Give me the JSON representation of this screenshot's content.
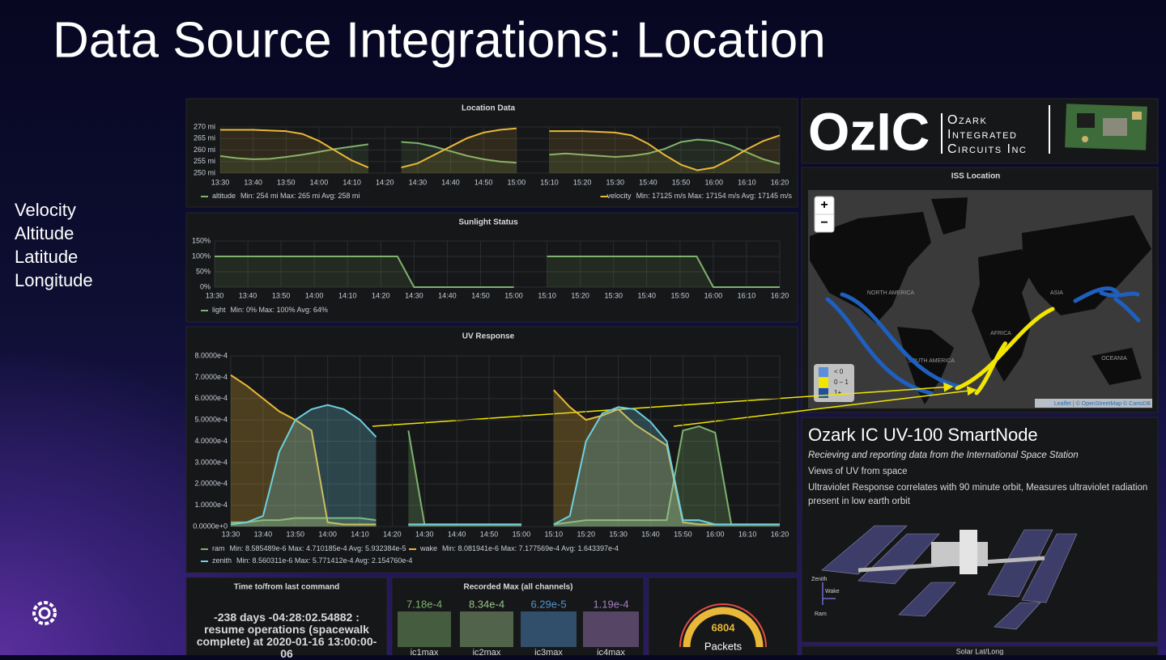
{
  "slide": {
    "title": "Data Source Integrations: Location",
    "bullets": [
      "Velocity",
      "Altitude",
      "Latitude",
      "Longitude"
    ]
  },
  "chart_data": [
    {
      "type": "line",
      "title": "Location Data",
      "categories": [
        "13:30",
        null,
        "13:40",
        null,
        "13:50",
        null,
        "14:00",
        null,
        "14:10",
        null,
        "14:20",
        null,
        "14:30",
        null,
        "14:40",
        null,
        "14:50",
        null,
        "15:00",
        null,
        "15:10",
        null,
        "15:20",
        null,
        "15:30",
        null,
        "15:40",
        null,
        "15:50",
        null,
        "16:00",
        null,
        "16:10",
        null,
        "16:20"
      ],
      "ylim": [
        250,
        270
      ],
      "yticks": [
        {
          "value": 250,
          "label": "250 mi"
        },
        {
          "value": 255,
          "label": "255 mi"
        },
        {
          "value": 260,
          "label": "260 mi"
        },
        {
          "value": 265,
          "label": "265 mi"
        },
        {
          "value": 270,
          "label": "270 mi"
        }
      ],
      "y2lim": [
        17123,
        17156
      ],
      "grid": true,
      "series": [
        {
          "name": "altitude",
          "color": "#7eb26d",
          "stats": "Min: 254 mi  Max: 265 mi  Avg: 258 mi",
          "values": [
            257.4,
            256.5,
            256,
            256.2,
            257,
            258,
            259.2,
            260.5,
            261.5,
            262.5,
            null,
            263.5,
            263,
            261.5,
            259.5,
            257.5,
            256,
            255,
            254.5,
            null,
            258,
            258.5,
            258,
            257.5,
            257,
            257.5,
            258.5,
            260.5,
            263.5,
            264.5,
            264,
            262,
            259,
            256,
            254
          ]
        },
        {
          "name": "velocity",
          "color": "#eab839",
          "axis": "y2",
          "stats": "Min: 17125 m/s  Max: 17154 m/s  Avg: 17145 m/s",
          "values": [
            17154,
            17154,
            17154,
            17153.5,
            17153,
            17151,
            17146,
            17139,
            17132,
            17127,
            null,
            17127,
            17130,
            17136,
            17142,
            17148,
            17152,
            17154,
            17155,
            null,
            17153,
            17153,
            17153,
            17152.5,
            17152,
            17150,
            17144,
            17136,
            17129,
            17125,
            17127,
            17133,
            17140,
            17146,
            17150
          ]
        }
      ]
    },
    {
      "type": "line",
      "title": "Sunlight Status",
      "categories": [
        "13:30",
        null,
        "13:40",
        null,
        "13:50",
        null,
        "14:00",
        null,
        "14:10",
        null,
        "14:20",
        null,
        "14:30",
        null,
        "14:40",
        null,
        "14:50",
        null,
        "15:00",
        null,
        "15:10",
        null,
        "15:20",
        null,
        "15:30",
        null,
        "15:40",
        null,
        "15:50",
        null,
        "16:00",
        null,
        "16:10",
        null,
        "16:20"
      ],
      "ylim": [
        0,
        150
      ],
      "yticks": [
        {
          "value": 0,
          "label": "0%"
        },
        {
          "value": 50,
          "label": "50%"
        },
        {
          "value": 100,
          "label": "100%"
        },
        {
          "value": 150,
          "label": "150%"
        }
      ],
      "grid": true,
      "series": [
        {
          "name": "light",
          "color": "#7eb26d",
          "stats": "Min: 0%  Max: 100%  Avg: 64%",
          "values": [
            100,
            100,
            100,
            100,
            100,
            100,
            100,
            100,
            100,
            100,
            100,
            100,
            0,
            0,
            0,
            0,
            0,
            0,
            0,
            null,
            100,
            100,
            100,
            100,
            100,
            100,
            100,
            100,
            100,
            100,
            0,
            0,
            0,
            0,
            0
          ]
        }
      ]
    },
    {
      "type": "line",
      "title": "UV Response",
      "categories": [
        "13:30",
        null,
        "13:40",
        null,
        "13:50",
        null,
        "14:00",
        null,
        "14:10",
        null,
        "14:20",
        null,
        "14:30",
        null,
        "14:40",
        null,
        "14:50",
        null,
        "15:00",
        null,
        "15:10",
        null,
        "15:20",
        null,
        "15:30",
        null,
        "15:40",
        null,
        "15:50",
        null,
        "16:00",
        null,
        "16:10",
        null,
        "16:20"
      ],
      "ylim": [
        0,
        0.0008
      ],
      "yticks": [
        {
          "value": 0,
          "label": "0.0000e+0"
        },
        {
          "value": 0.0001,
          "label": "1.0000e-4"
        },
        {
          "value": 0.0002,
          "label": "2.0000e-4"
        },
        {
          "value": 0.0003,
          "label": "3.0000e-4"
        },
        {
          "value": 0.0004,
          "label": "4.0000e-4"
        },
        {
          "value": 0.0005,
          "label": "5.0000e-4"
        },
        {
          "value": 0.0006,
          "label": "6.0000e-4"
        },
        {
          "value": 0.0007,
          "label": "7.0000e-4"
        },
        {
          "value": 0.0008,
          "label": "8.0000e-4"
        }
      ],
      "grid": true,
      "series": [
        {
          "name": "ram",
          "color": "#7eb26d",
          "stats": "Min: 8.585489e-6  Max: 4.710185e-4  Avg: 5.932384e-5",
          "values": [
            2e-05,
            2e-05,
            3e-05,
            3e-05,
            4e-05,
            4e-05,
            4e-05,
            4e-05,
            4e-05,
            3e-05,
            null,
            0.00045,
            1e-05,
            1e-05,
            1e-05,
            1e-05,
            1e-05,
            1e-05,
            1e-05,
            null,
            1e-05,
            2e-05,
            3e-05,
            3e-05,
            3e-05,
            3e-05,
            3e-05,
            3e-05,
            0.00045,
            0.00047,
            0.00044,
            1e-05,
            1e-05,
            1e-05,
            1e-05
          ]
        },
        {
          "name": "wake",
          "color": "#eab839",
          "stats": "Min: 8.081941e-6  Max: 7.177569e-4  Avg: 1.643397e-4",
          "values": [
            0.00071,
            0.00066,
            0.0006,
            0.00054,
            0.0005,
            0.00045,
            2e-05,
            1e-05,
            1e-05,
            1e-05,
            null,
            1e-05,
            1e-05,
            1e-05,
            1e-05,
            1e-05,
            1e-05,
            1e-05,
            1e-05,
            null,
            0.00064,
            0.00056,
            0.0005,
            0.00052,
            0.00055,
            0.00048,
            0.00043,
            0.00038,
            2e-05,
            1e-05,
            1e-05,
            1e-05,
            1e-05,
            1e-05,
            1e-05
          ]
        },
        {
          "name": "zenith",
          "color": "#6ed0e0",
          "stats": "Min: 8.560311e-6  Max: 5.771412e-4  Avg: 2.154760e-4",
          "values": [
            1e-05,
            2e-05,
            5e-05,
            0.00035,
            0.0005,
            0.00055,
            0.00057,
            0.00055,
            0.0005,
            0.00042,
            null,
            1e-05,
            1e-05,
            1e-05,
            1e-05,
            1e-05,
            1e-05,
            1e-05,
            1e-05,
            null,
            1e-05,
            5e-05,
            0.0004,
            0.00053,
            0.00056,
            0.00055,
            0.00049,
            0.0004,
            3e-05,
            3e-05,
            1e-05,
            1e-05,
            1e-05,
            1e-05,
            1e-05
          ]
        }
      ]
    }
  ],
  "panels": {
    "command": {
      "title": "Time to/from last command",
      "text": "-238 days -04:28:02.54882 : resume operations (spacewalk complete) at 2020-01-16 13:00:00-06"
    },
    "recorded_max": {
      "title": "Recorded Max (all channels)",
      "items": [
        {
          "label": "ic1max",
          "value": "7.18e-4",
          "color": "#7eb26d"
        },
        {
          "label": "ic2max",
          "value": "8.34e-4",
          "color": "#9ac48a"
        },
        {
          "label": "ic3max",
          "value": "6.29e-5",
          "color": "#5195ce"
        },
        {
          "label": "ic4max",
          "value": "1.19e-4",
          "color": "#a57fc2"
        }
      ]
    },
    "packets": {
      "value": 6804,
      "label": "Packets"
    },
    "logo": {
      "mark": "OzIC",
      "lines": [
        "Ozark",
        "Integrated",
        "Circuits Inc"
      ]
    },
    "map": {
      "title": "ISS Location",
      "zoom_in": "+",
      "zoom_out": "−",
      "legend": [
        "< 0",
        "0 – 1",
        "1+"
      ],
      "attribution": "Leaflet | © OpenStreetMap © CartoDB",
      "regions": [
        "NORTH AMERICA",
        "SOUTH AMERICA",
        "AFRICA",
        "ASIA",
        "OCEANIA"
      ]
    },
    "info": {
      "title": "Ozark IC UV-100 SmartNode",
      "subtitle": "Recieving and reporting data from the International Space Station",
      "lines": [
        "Views of UV from space",
        "Ultraviolet Response correlates with 90 minute orbit, Measures ultraviolet radiation present in low earth orbit"
      ],
      "axes": [
        "Zenith",
        "Wake",
        "Ram"
      ]
    },
    "solar": {
      "title": "Solar Lat/Long"
    }
  }
}
